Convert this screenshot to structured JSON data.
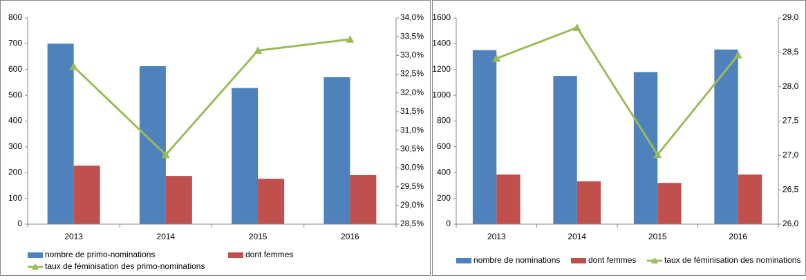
{
  "chart_data": [
    {
      "type": "combo",
      "categories": [
        "2013",
        "2014",
        "2015",
        "2016"
      ],
      "series": [
        {
          "name": "nombre de primo-nominations",
          "color": "#4f81bd",
          "kind": "bar",
          "values": [
            700,
            613,
            528,
            570
          ]
        },
        {
          "name": "dont femmes",
          "color": "#c0504d",
          "kind": "bar",
          "values": [
            227,
            187,
            176,
            190
          ]
        },
        {
          "name": "taux de féminisation des primo-nominations",
          "color": "#9bbb59",
          "kind": "line",
          "axis": "y2",
          "values": [
            32.7,
            30.35,
            33.13,
            33.43
          ]
        }
      ],
      "ylim": [
        0,
        800
      ],
      "yticks": [
        0,
        100,
        200,
        300,
        400,
        500,
        600,
        700,
        800
      ],
      "y2lim": [
        28.5,
        34.0
      ],
      "y2ticks": [
        {
          "value": 28.5,
          "label": "28,5%"
        },
        {
          "value": 29.0,
          "label": "29,0%"
        },
        {
          "value": 29.5,
          "label": "29,5%"
        },
        {
          "value": 30.0,
          "label": "30,0%"
        },
        {
          "value": 30.5,
          "label": "30,5%"
        },
        {
          "value": 31.0,
          "label": "31,0%"
        },
        {
          "value": 31.5,
          "label": "31,5%"
        },
        {
          "value": 32.0,
          "label": "32,0%"
        },
        {
          "value": 32.5,
          "label": "32,5%"
        },
        {
          "value": 33.0,
          "label": "33,0%"
        },
        {
          "value": 33.5,
          "label": "33,5%"
        },
        {
          "value": 34.0,
          "label": "34,0%"
        }
      ]
    },
    {
      "type": "combo",
      "categories": [
        "2013",
        "2014",
        "2015",
        "2016"
      ],
      "series": [
        {
          "name": "nombre de nominations",
          "color": "#4f81bd",
          "kind": "bar",
          "values": [
            1350,
            1150,
            1180,
            1355
          ]
        },
        {
          "name": "dont femmes",
          "color": "#c0504d",
          "kind": "bar",
          "values": [
            385,
            332,
            320,
            385
          ]
        },
        {
          "name": "taux de féminisation des nominations",
          "color": "#9bbb59",
          "kind": "line",
          "axis": "y2",
          "values": [
            28.41,
            28.86,
            27.01,
            28.46
          ]
        }
      ],
      "ylim": [
        0,
        1600
      ],
      "yticks": [
        0,
        200,
        400,
        600,
        800,
        1000,
        1200,
        1400,
        1600
      ],
      "y2lim": [
        26.0,
        29.0
      ],
      "y2ticks": [
        {
          "value": 26.0,
          "label": "26,0"
        },
        {
          "value": 26.5,
          "label": "26,5"
        },
        {
          "value": 27.0,
          "label": "27,0"
        },
        {
          "value": 27.5,
          "label": "27,5"
        },
        {
          "value": 28.0,
          "label": "28,0"
        },
        {
          "value": 28.5,
          "label": "28,5"
        },
        {
          "value": 29.0,
          "label": "29,0"
        }
      ]
    }
  ]
}
